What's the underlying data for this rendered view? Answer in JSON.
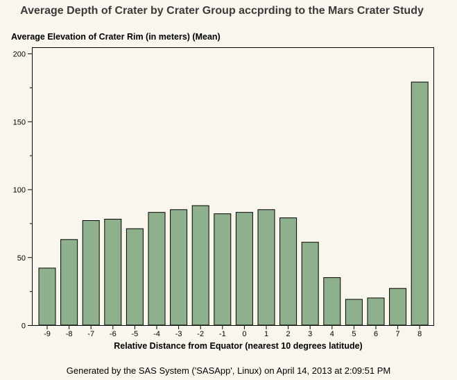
{
  "chart_data": {
    "type": "bar",
    "title": "Average Depth of Crater by Crater Group accprding to the Mars Crater Study",
    "ylabel": "Average Elevation of Crater Rim (in meters) (Mean)",
    "xlabel": "Relative Distance from Equator (nearest 10 degrees latitude)",
    "categories": [
      "-9",
      "-8",
      "-7",
      "-6",
      "-5",
      "-4",
      "-3",
      "-2",
      "-1",
      "0",
      "1",
      "2",
      "3",
      "4",
      "5",
      "6",
      "7",
      "8"
    ],
    "values": [
      42,
      63,
      77,
      78,
      71,
      83,
      85,
      88,
      82,
      83,
      85,
      79,
      61,
      35,
      19,
      20,
      27,
      179
    ],
    "ylim": [
      0,
      200
    ],
    "yticks": [
      0,
      50,
      100,
      150,
      200
    ],
    "grid": false,
    "bar_color": "#8fb08c",
    "bar_stroke": "#000000",
    "background": "#f9f6ee"
  },
  "footnote": "Generated by the SAS System ('SASApp', Linux) on April 14, 2013 at 2:09:51 PM"
}
